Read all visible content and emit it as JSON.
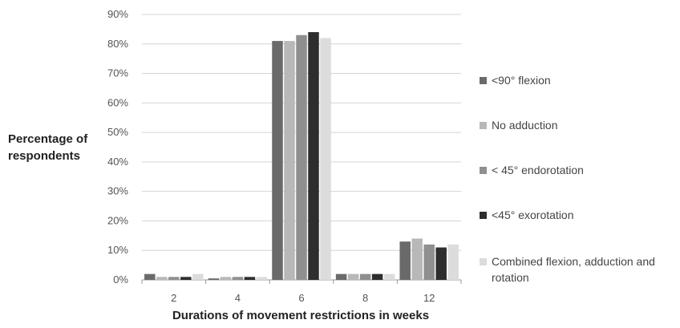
{
  "chart_data": {
    "type": "bar",
    "title": "",
    "xlabel": "Durations of movement restrictions in weeks",
    "ylabel": "Percentage of respondents",
    "categories": [
      "2",
      "4",
      "6",
      "8",
      "12"
    ],
    "ylim": [
      0,
      90
    ],
    "yticks": [
      "0%",
      "10%",
      "20%",
      "30%",
      "40%",
      "50%",
      "60%",
      "70%",
      "80%",
      "90%"
    ],
    "grid": true,
    "legend_position": "right",
    "series": [
      {
        "name": "<90° flexion",
        "color": "#6a6a6a",
        "values": [
          2,
          0.5,
          81,
          2,
          13
        ]
      },
      {
        "name": "No adduction",
        "color": "#b8b8b8",
        "values": [
          1,
          1,
          81,
          2,
          14
        ]
      },
      {
        "name": "< 45° endorotation",
        "color": "#8f8f8f",
        "values": [
          1,
          1,
          83,
          2,
          12
        ]
      },
      {
        "name": "<45° exorotation",
        "color": "#2e2e2e",
        "values": [
          1,
          1,
          84,
          2,
          11
        ]
      },
      {
        "name": "Combined flexion, adduction and rotation",
        "color": "#dcdcdc",
        "values": [
          2,
          1,
          82,
          2,
          12
        ]
      }
    ]
  }
}
